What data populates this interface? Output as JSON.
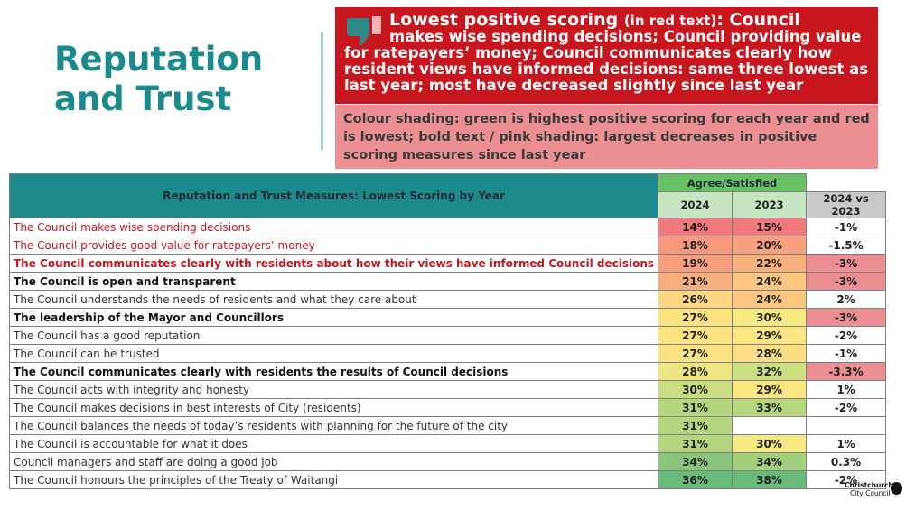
{
  "title": {
    "line1": "Reputation",
    "line2": "and Trust"
  },
  "callout_red": {
    "icon": "thumbs-down-icon",
    "lead": "Lowest positive scoring",
    "lead_paren": "(in red text)",
    "lead_rest": ": Council",
    "line1": "makes wise spending decisions; Council providing value",
    "rest": "for ratepayers’ money; Council communicates clearly how resident views have informed decisions: same three lowest as last year; most have decreased slightly since last year"
  },
  "callout_pink": {
    "text": "Colour shading: green is highest positive scoring for each year and red is lowest; bold text / pink shading: largest decreases in positive scoring measures since last year"
  },
  "table": {
    "title": "Reputation and Trust Measures: Lowest Scoring by Year",
    "group_header": "Agree/Satisfied",
    "col_2024": "2024",
    "col_2023": "2023",
    "col_diff": "2024 vs 2023",
    "rows": [
      {
        "label": "The Council makes wise spending decisions",
        "v2024": "14%",
        "v2023": "15%",
        "diff": "-1%",
        "red": true,
        "bold": false,
        "pink": false,
        "c2024": "#f07a7b",
        "c2023": "#f07a7b"
      },
      {
        "label": "The Council provides good value for ratepayers’ money",
        "v2024": "18%",
        "v2023": "20%",
        "diff": "-1.5%",
        "red": true,
        "bold": false,
        "pink": false,
        "c2024": "#f5987d",
        "c2023": "#f6a27e"
      },
      {
        "label": "The Council communicates clearly with residents about how their views have informed Council decisions",
        "v2024": "19%",
        "v2023": "22%",
        "diff": "-3%",
        "red": true,
        "bold": true,
        "pink": true,
        "c2024": "#f59f7e",
        "c2023": "#f8b07f"
      },
      {
        "label": "The Council is open and transparent",
        "v2024": "21%",
        "v2023": "24%",
        "diff": "-3%",
        "red": false,
        "bold": true,
        "pink": true,
        "c2024": "#f7ae7f",
        "c2023": "#fbc681"
      },
      {
        "label": "The Council understands the needs of residents and what they care about",
        "v2024": "26%",
        "v2023": "24%",
        "diff": "2%",
        "red": false,
        "bold": false,
        "pink": false,
        "c2024": "#fcd683",
        "c2023": "#fbc681"
      },
      {
        "label": "The leadership of the Mayor and Councillors",
        "v2024": "27%",
        "v2023": "30%",
        "diff": "-3%",
        "red": false,
        "bold": true,
        "pink": true,
        "c2024": "#fde284",
        "c2023": "#f5e984"
      },
      {
        "label": "The Council has a good reputation",
        "v2024": "27%",
        "v2023": "29%",
        "diff": "-2%",
        "red": false,
        "bold": false,
        "pink": false,
        "c2024": "#fde284",
        "c2023": "#fde584"
      },
      {
        "label": "The Council can be trusted",
        "v2024": "27%",
        "v2023": "28%",
        "diff": "-1%",
        "red": false,
        "bold": false,
        "pink": false,
        "c2024": "#fde284",
        "c2023": "#fddd84"
      },
      {
        "label": "The Council communicates clearly with residents the results of Council decisions",
        "v2024": "28%",
        "v2023": "32%",
        "diff": "-3.3%",
        "red": false,
        "bold": true,
        "pink": true,
        "c2024": "#f0e583",
        "c2023": "#cddf82"
      },
      {
        "label": "The Council acts with integrity and honesty",
        "v2024": "30%",
        "v2023": "29%",
        "diff": "1%",
        "red": false,
        "bold": false,
        "pink": false,
        "c2024": "#c9dc81",
        "c2023": "#fde584"
      },
      {
        "label": "The Council makes decisions in best interests of City (residents)",
        "v2024": "31%",
        "v2023": "33%",
        "diff": "-2%",
        "red": false,
        "bold": false,
        "pink": false,
        "c2024": "#b5d57f",
        "c2023": "#b6d680"
      },
      {
        "label": "The Council balances the needs of today’s residents with planning for the future of the city",
        "v2024": "31%",
        "v2023": "",
        "diff": "",
        "red": false,
        "bold": false,
        "pink": false,
        "c2024": "#b5d57f",
        "c2023": "#ffffff"
      },
      {
        "label": "The Council is accountable for what it does",
        "v2024": "31%",
        "v2023": "30%",
        "diff": "1%",
        "red": false,
        "bold": false,
        "pink": false,
        "c2024": "#b5d57f",
        "c2023": "#f5e984"
      },
      {
        "label": "Council managers and staff are doing a good job",
        "v2024": "34%",
        "v2023": "34%",
        "diff": "0.3%",
        "red": false,
        "bold": false,
        "pink": false,
        "c2024": "#8ac57c",
        "c2023": "#a2cf7e"
      },
      {
        "label": "The Council honours the principles of the Treaty of Waitangi",
        "v2024": "36%",
        "v2023": "38%",
        "diff": "-2%",
        "red": false,
        "bold": false,
        "pink": false,
        "c2024": "#67ba79",
        "c2023": "#67ba79"
      }
    ]
  },
  "logo": {
    "line1": "Christchurch",
    "line2": "City Council"
  }
}
